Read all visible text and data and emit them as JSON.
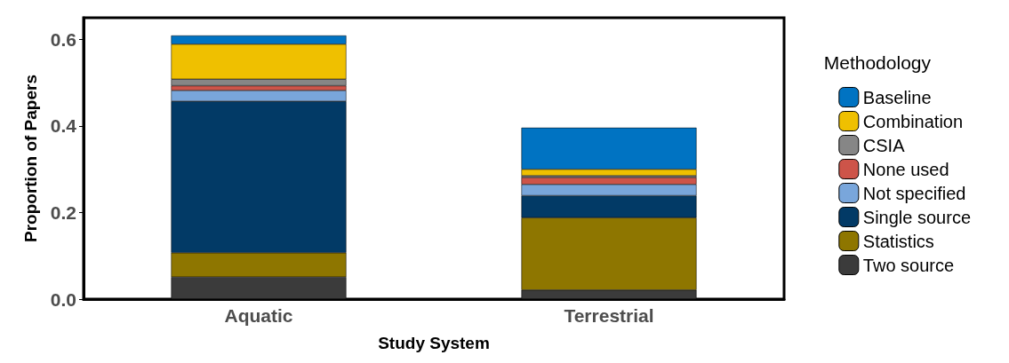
{
  "chart_data": {
    "type": "bar",
    "stacked": true,
    "xlabel": "Study System",
    "ylabel": "Proportion of Papers",
    "legend_title": "Methodology",
    "legend": "right",
    "grid": false,
    "categories": [
      "Aquatic",
      "Terrestrial"
    ],
    "ylim": [
      0,
      0.65
    ],
    "yticks": [
      {
        "value": 0,
        "label": "0.0"
      },
      0.2,
      0.4,
      0.6
    ],
    "series": [
      {
        "name": "Two source",
        "color": "#3b3b3b",
        "values": [
          0.051,
          0.021
        ]
      },
      {
        "name": "Statistics",
        "color": "#8e7600",
        "values": [
          0.056,
          0.167
        ]
      },
      {
        "name": "Single source",
        "color": "#023a66",
        "values": [
          0.35,
          0.051
        ]
      },
      {
        "name": "Not specified",
        "color": "#79a6db",
        "values": [
          0.025,
          0.026
        ]
      },
      {
        "name": "None used",
        "color": "#cd5449",
        "values": [
          0.011,
          0.016
        ]
      },
      {
        "name": "CSIA",
        "color": "#868686",
        "values": [
          0.015,
          0.004
        ]
      },
      {
        "name": "Combination",
        "color": "#efc000",
        "values": [
          0.081,
          0.015
        ]
      },
      {
        "name": "Baseline",
        "color": "#0073c2",
        "values": [
          0.02,
          0.096
        ]
      }
    ]
  }
}
